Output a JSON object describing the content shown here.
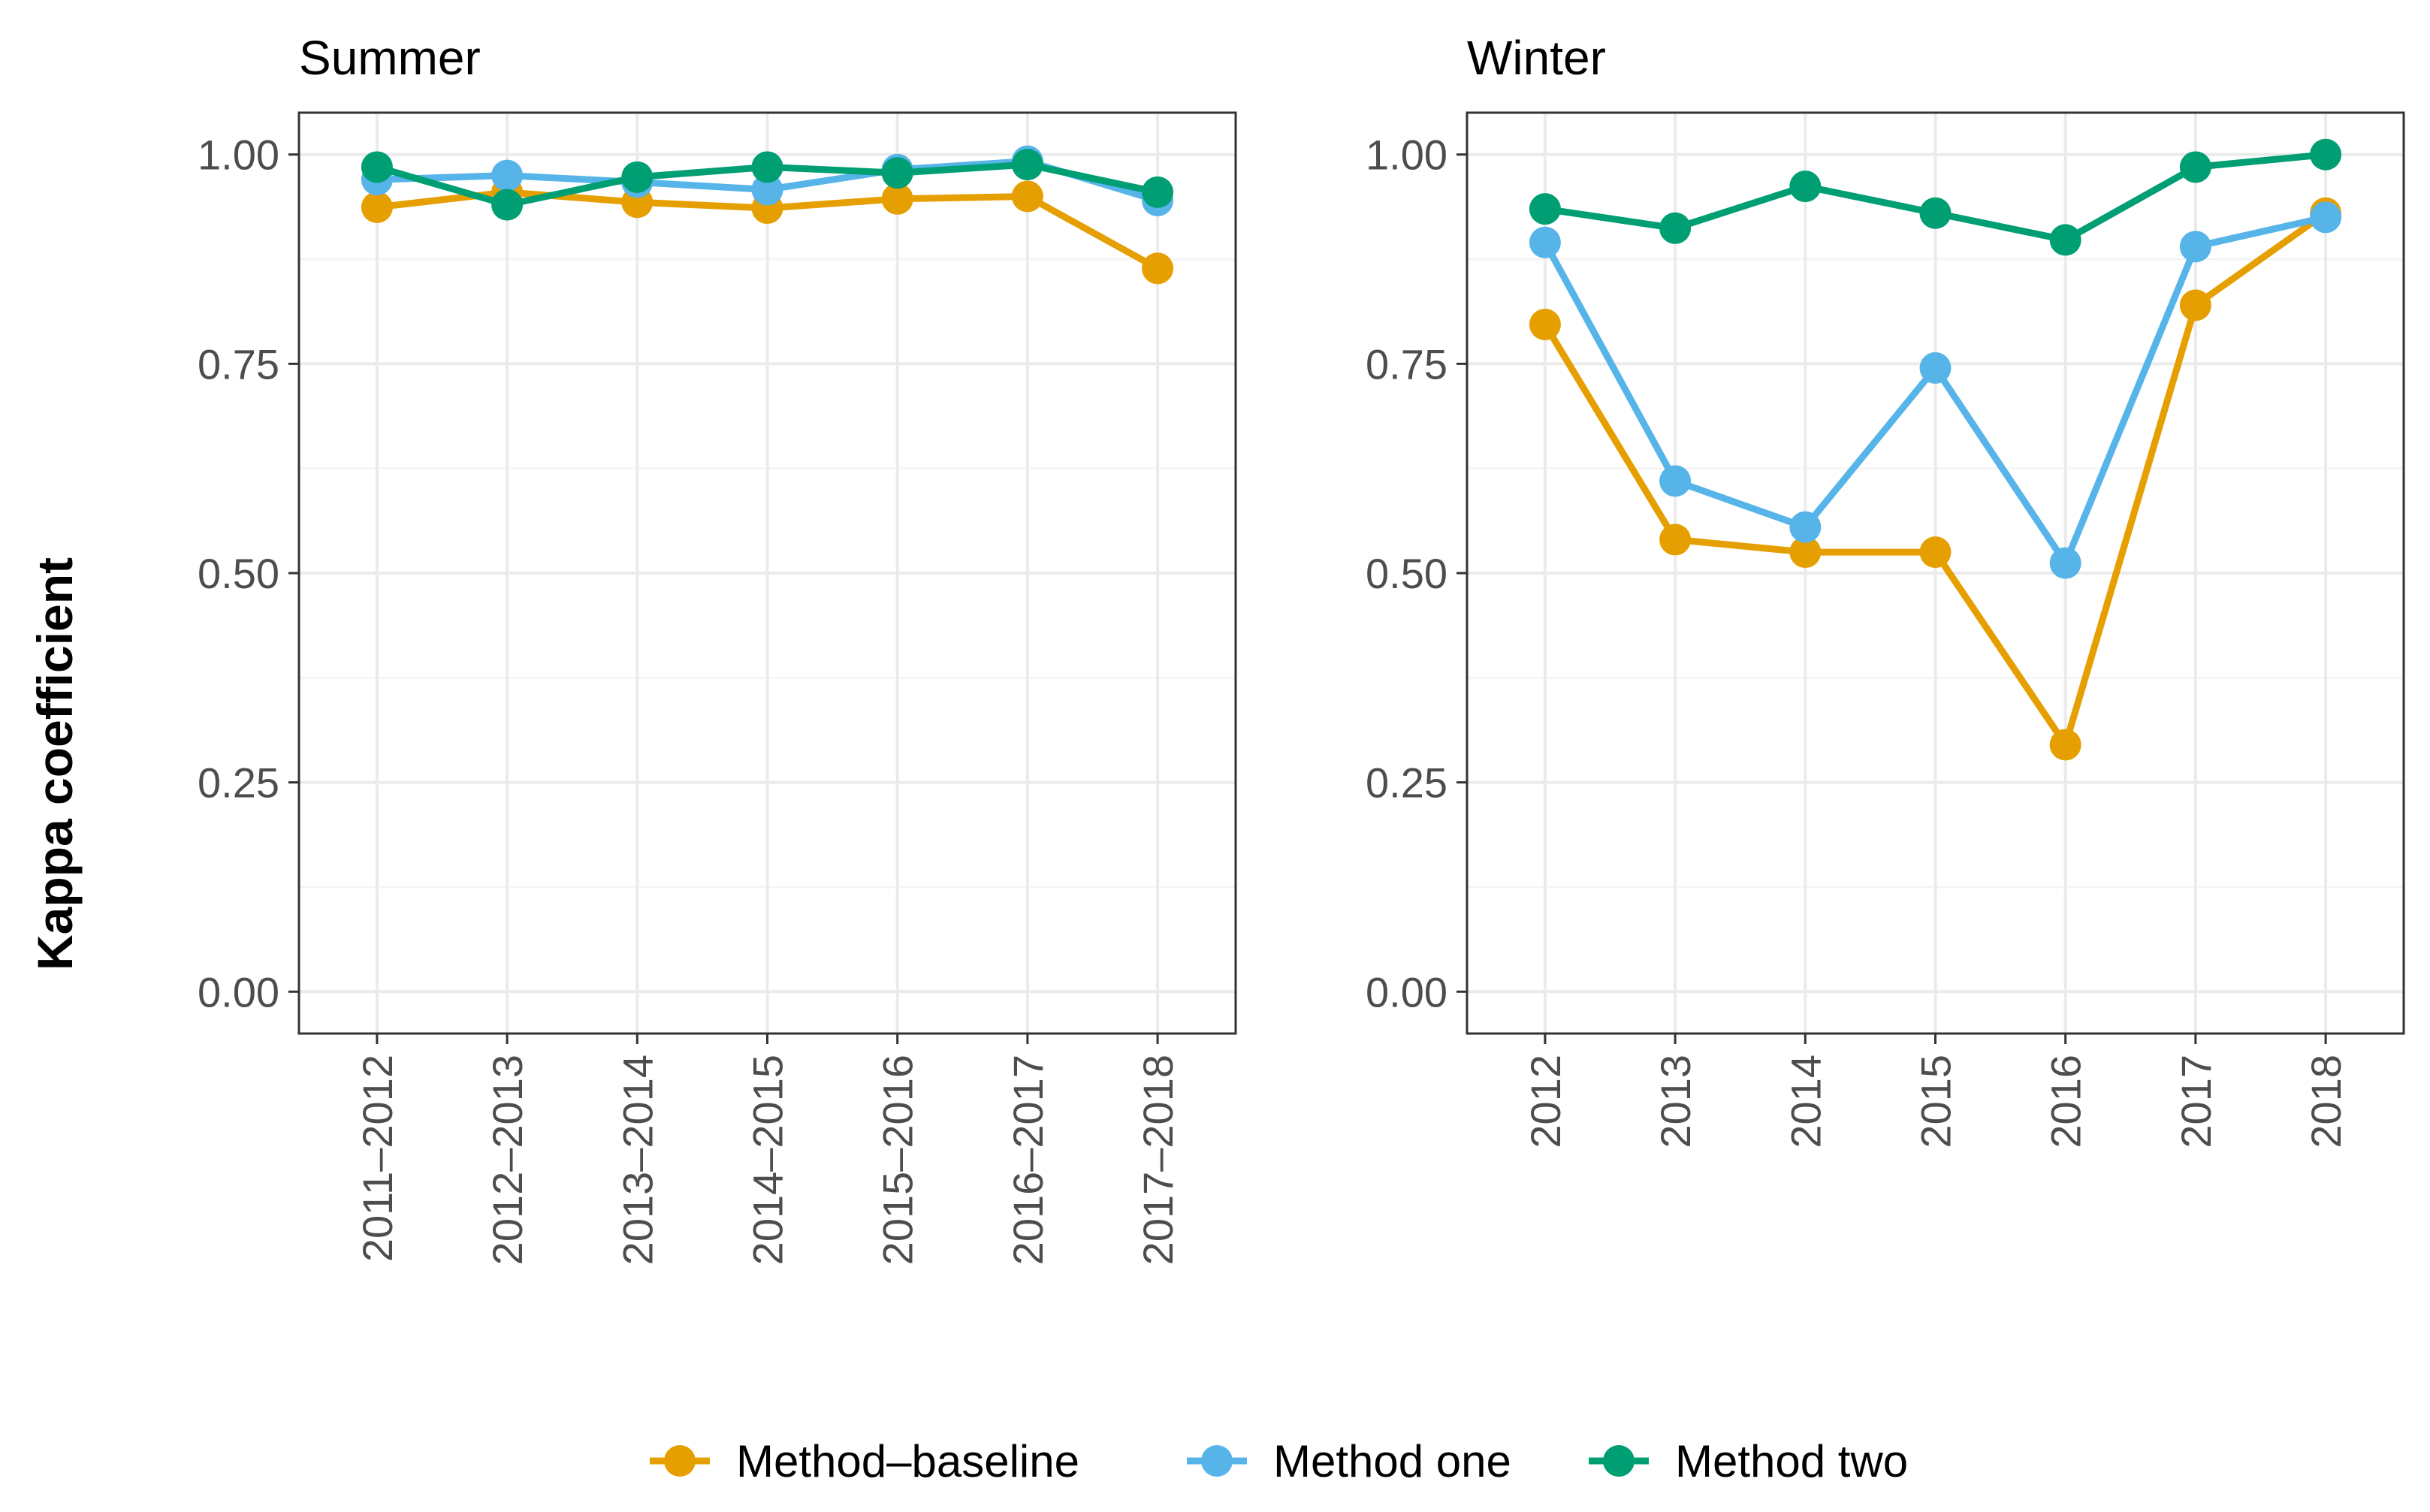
{
  "chart_data": [
    {
      "type": "line",
      "title": "Summer",
      "xlabel": "",
      "ylabel": "Kappa coefficient",
      "categories": [
        "2011–2012",
        "2012–2013",
        "2013–2014",
        "2014–2015",
        "2015–2016",
        "2016–2017",
        "2017–2018"
      ],
      "ylim": [
        -0.05,
        1.05
      ],
      "yticks": [
        "0.00",
        "0.25",
        "0.50",
        "0.75",
        "1.00"
      ],
      "ytick_values": [
        0,
        0.25,
        0.5,
        0.75,
        1
      ],
      "grid": true,
      "series": [
        {
          "name": "Method–baseline",
          "values": [
            0.937,
            0.955,
            0.943,
            0.936,
            0.947,
            0.95,
            0.864
          ]
        },
        {
          "name": "Method one",
          "values": [
            0.97,
            0.975,
            0.967,
            0.958,
            0.982,
            0.992,
            0.945
          ]
        },
        {
          "name": "Method two",
          "values": [
            0.985,
            0.94,
            0.973,
            0.985,
            0.978,
            0.988,
            0.955
          ]
        }
      ]
    },
    {
      "type": "line",
      "title": "Winter",
      "xlabel": "",
      "ylabel": "Kappa coefficient",
      "categories": [
        "2012",
        "2013",
        "2014",
        "2015",
        "2016",
        "2017",
        "2018"
      ],
      "ylim": [
        -0.05,
        1.05
      ],
      "yticks": [
        "0.00",
        "0.25",
        "0.50",
        "0.75",
        "1.00"
      ],
      "ytick_values": [
        0,
        0.25,
        0.5,
        0.75,
        1
      ],
      "grid": true,
      "series": [
        {
          "name": "Method–baseline",
          "values": [
            0.797,
            0.54,
            0.525,
            0.525,
            0.295,
            0.82,
            0.93
          ]
        },
        {
          "name": "Method one",
          "values": [
            0.895,
            0.61,
            0.555,
            0.745,
            0.512,
            0.89,
            0.925
          ]
        },
        {
          "name": "Method two",
          "values": [
            0.935,
            0.912,
            0.962,
            0.93,
            0.898,
            0.985,
            1.0
          ]
        }
      ]
    }
  ],
  "legend": {
    "position": "bottom",
    "items": [
      {
        "label": "Method–baseline",
        "color": "#E69F00"
      },
      {
        "label": "Method one",
        "color": "#56B4E9"
      },
      {
        "label": "Method two",
        "color": "#009E73"
      }
    ]
  },
  "y_axis_title": "Kappa coefficient"
}
